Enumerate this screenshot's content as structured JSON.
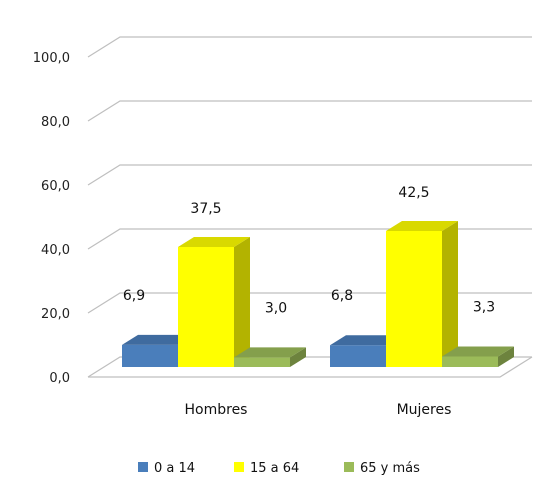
{
  "chart_data": {
    "type": "bar",
    "categories": [
      "Hombres",
      "Mujeres"
    ],
    "series": [
      {
        "name": "0 a 14",
        "values": [
          6.9,
          6.8
        ],
        "labels": [
          "6,9",
          "6,8"
        ],
        "color": "#4a7ebb"
      },
      {
        "name": "15 a 64",
        "values": [
          37.5,
          42.5
        ],
        "labels": [
          "37,5",
          "42,5"
        ],
        "color": "#ffff00"
      },
      {
        "name": "65 y más",
        "values": [
          3.0,
          3.3
        ],
        "labels": [
          "3,0",
          "3,3"
        ],
        "color": "#9bbb59"
      }
    ],
    "y_ticks": [
      "0,0",
      "20,0",
      "40,0",
      "60,0",
      "80,0",
      "100,0"
    ],
    "ylim": [
      0,
      100
    ],
    "grid": true,
    "legend": "bottom",
    "three_d": true
  }
}
